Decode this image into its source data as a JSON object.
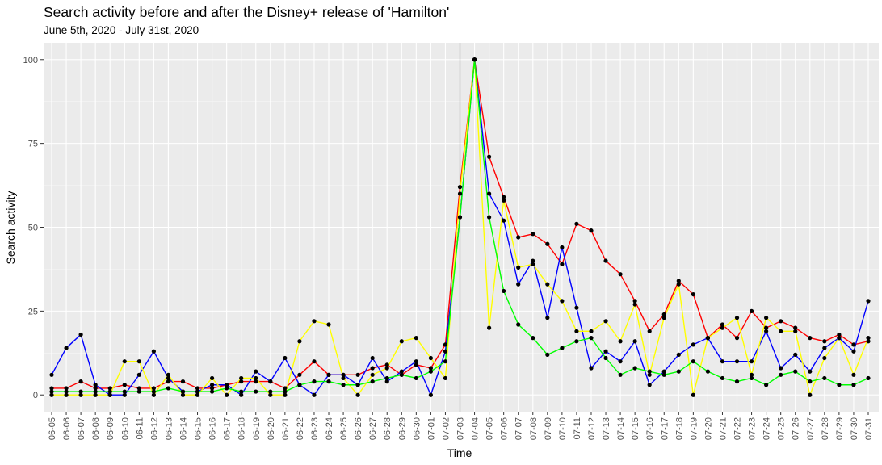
{
  "chart_data": {
    "type": "line",
    "title": "Search activity before and after the Disney+ release of 'Hamilton'",
    "subtitle": "June 5th, 2020 - July 31st, 2020",
    "xlabel": "Time",
    "ylabel": "Search activity",
    "ylim": [
      -5,
      105
    ],
    "yticks": [
      0,
      25,
      50,
      75,
      100
    ],
    "vline_at": "07-03",
    "grid": true,
    "legend": "none",
    "categories": [
      "06-05",
      "06-06",
      "06-07",
      "06-08",
      "06-09",
      "06-10",
      "06-11",
      "06-12",
      "06-13",
      "06-14",
      "06-15",
      "06-16",
      "06-17",
      "06-18",
      "06-19",
      "06-20",
      "06-21",
      "06-22",
      "06-23",
      "06-24",
      "06-25",
      "06-26",
      "06-27",
      "06-28",
      "06-29",
      "06-30",
      "07-01",
      "07-02",
      "07-03",
      "07-04",
      "07-05",
      "07-06",
      "07-07",
      "07-08",
      "07-09",
      "07-10",
      "07-11",
      "07-12",
      "07-13",
      "07-14",
      "07-15",
      "07-16",
      "07-17",
      "07-18",
      "07-19",
      "07-20",
      "07-21",
      "07-22",
      "07-23",
      "07-24",
      "07-25",
      "07-26",
      "07-27",
      "07-28",
      "07-29",
      "07-30",
      "07-31"
    ],
    "series": [
      {
        "color": "#ff0000",
        "values": [
          2,
          2,
          4,
          2,
          2,
          3,
          2,
          2,
          4,
          4,
          2,
          2,
          3,
          4,
          4,
          4,
          2,
          6,
          10,
          6,
          6,
          6,
          8,
          9,
          6,
          9,
          8,
          15,
          62,
          100,
          71,
          59,
          47,
          48,
          45,
          39,
          51,
          49,
          40,
          36,
          28,
          19,
          24,
          34,
          30,
          17,
          21,
          17,
          25,
          20,
          22,
          20,
          17,
          16,
          18,
          15,
          16
        ]
      },
      {
        "color": "#0000ff",
        "values": [
          6,
          14,
          18,
          3,
          0,
          0,
          6,
          13,
          5,
          1,
          1,
          3,
          3,
          0,
          7,
          4,
          11,
          3,
          0,
          6,
          6,
          3,
          11,
          4,
          7,
          10,
          0,
          13,
          53,
          100,
          60,
          52,
          33,
          40,
          23,
          44,
          26,
          8,
          13,
          10,
          16,
          3,
          7,
          12,
          15,
          17,
          10,
          10,
          10,
          19,
          8,
          12,
          7,
          14,
          17,
          13,
          28
        ]
      },
      {
        "color": "#ffff00",
        "values": [
          0,
          0,
          0,
          0,
          0,
          10,
          10,
          0,
          6,
          0,
          0,
          5,
          0,
          5,
          5,
          0,
          0,
          16,
          22,
          21,
          5,
          0,
          6,
          8,
          16,
          17,
          11,
          5,
          60,
          100,
          20,
          58,
          38,
          39,
          33,
          28,
          19,
          19,
          22,
          16,
          27,
          6,
          23,
          33,
          0,
          17,
          20,
          23,
          6,
          23,
          19,
          19,
          0,
          11,
          17,
          6,
          17
        ]
      },
      {
        "color": "#00ff00",
        "values": [
          1,
          1,
          1,
          1,
          1,
          1,
          1,
          1,
          2,
          1,
          1,
          1,
          2,
          1,
          1,
          1,
          1,
          3,
          4,
          4,
          3,
          3,
          4,
          5,
          6,
          5,
          7,
          10,
          53,
          100,
          53,
          31,
          21,
          17,
          12,
          14,
          16,
          17,
          11,
          6,
          8,
          7,
          6,
          7,
          10,
          7,
          5,
          4,
          5,
          3,
          6,
          7,
          4,
          5,
          3,
          3,
          5
        ]
      }
    ]
  }
}
